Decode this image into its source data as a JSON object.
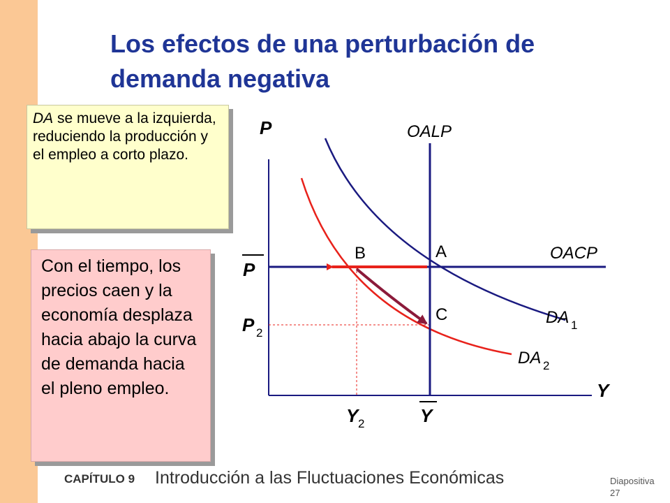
{
  "slide": {
    "title_line1": "Los efectos de una perturbación de",
    "title_line2": "demanda negativa",
    "yellow_box": {
      "em": "DA",
      "rest": " se mueve a la izquierda, reduciendo la producción y el empleo a corto plazo."
    },
    "pink_box": "Con el tiempo, los precios caen y la economía desplaza hacia abajo la curva de demanda hacia el pleno empleo.",
    "footer": {
      "chapter": "CAPÍTULO 9",
      "course": "Introducción a las Fluctuaciones Económicas",
      "slide_word": "Diapositiva",
      "slide_number": "27"
    }
  },
  "diagram": {
    "axis_y_label": "P",
    "axis_x_label": "Y",
    "price_bar_label": "P",
    "price2_label": "P",
    "price2_sub": "2",
    "output_bar_label": "Y",
    "output2_label": "Y",
    "output2_sub": "2",
    "curve_lras": "OALP",
    "curve_sras": "OACP",
    "curve_ad1": "DA",
    "curve_ad1_sub": "1",
    "curve_ad2": "DA",
    "curve_ad2_sub": "2",
    "point_a": "A",
    "point_b": "B",
    "point_c": "C",
    "colors": {
      "navy": "#1a1a80",
      "red": "#e8221b",
      "maroon": "#8b1a3a",
      "title": "#1f3596"
    }
  }
}
